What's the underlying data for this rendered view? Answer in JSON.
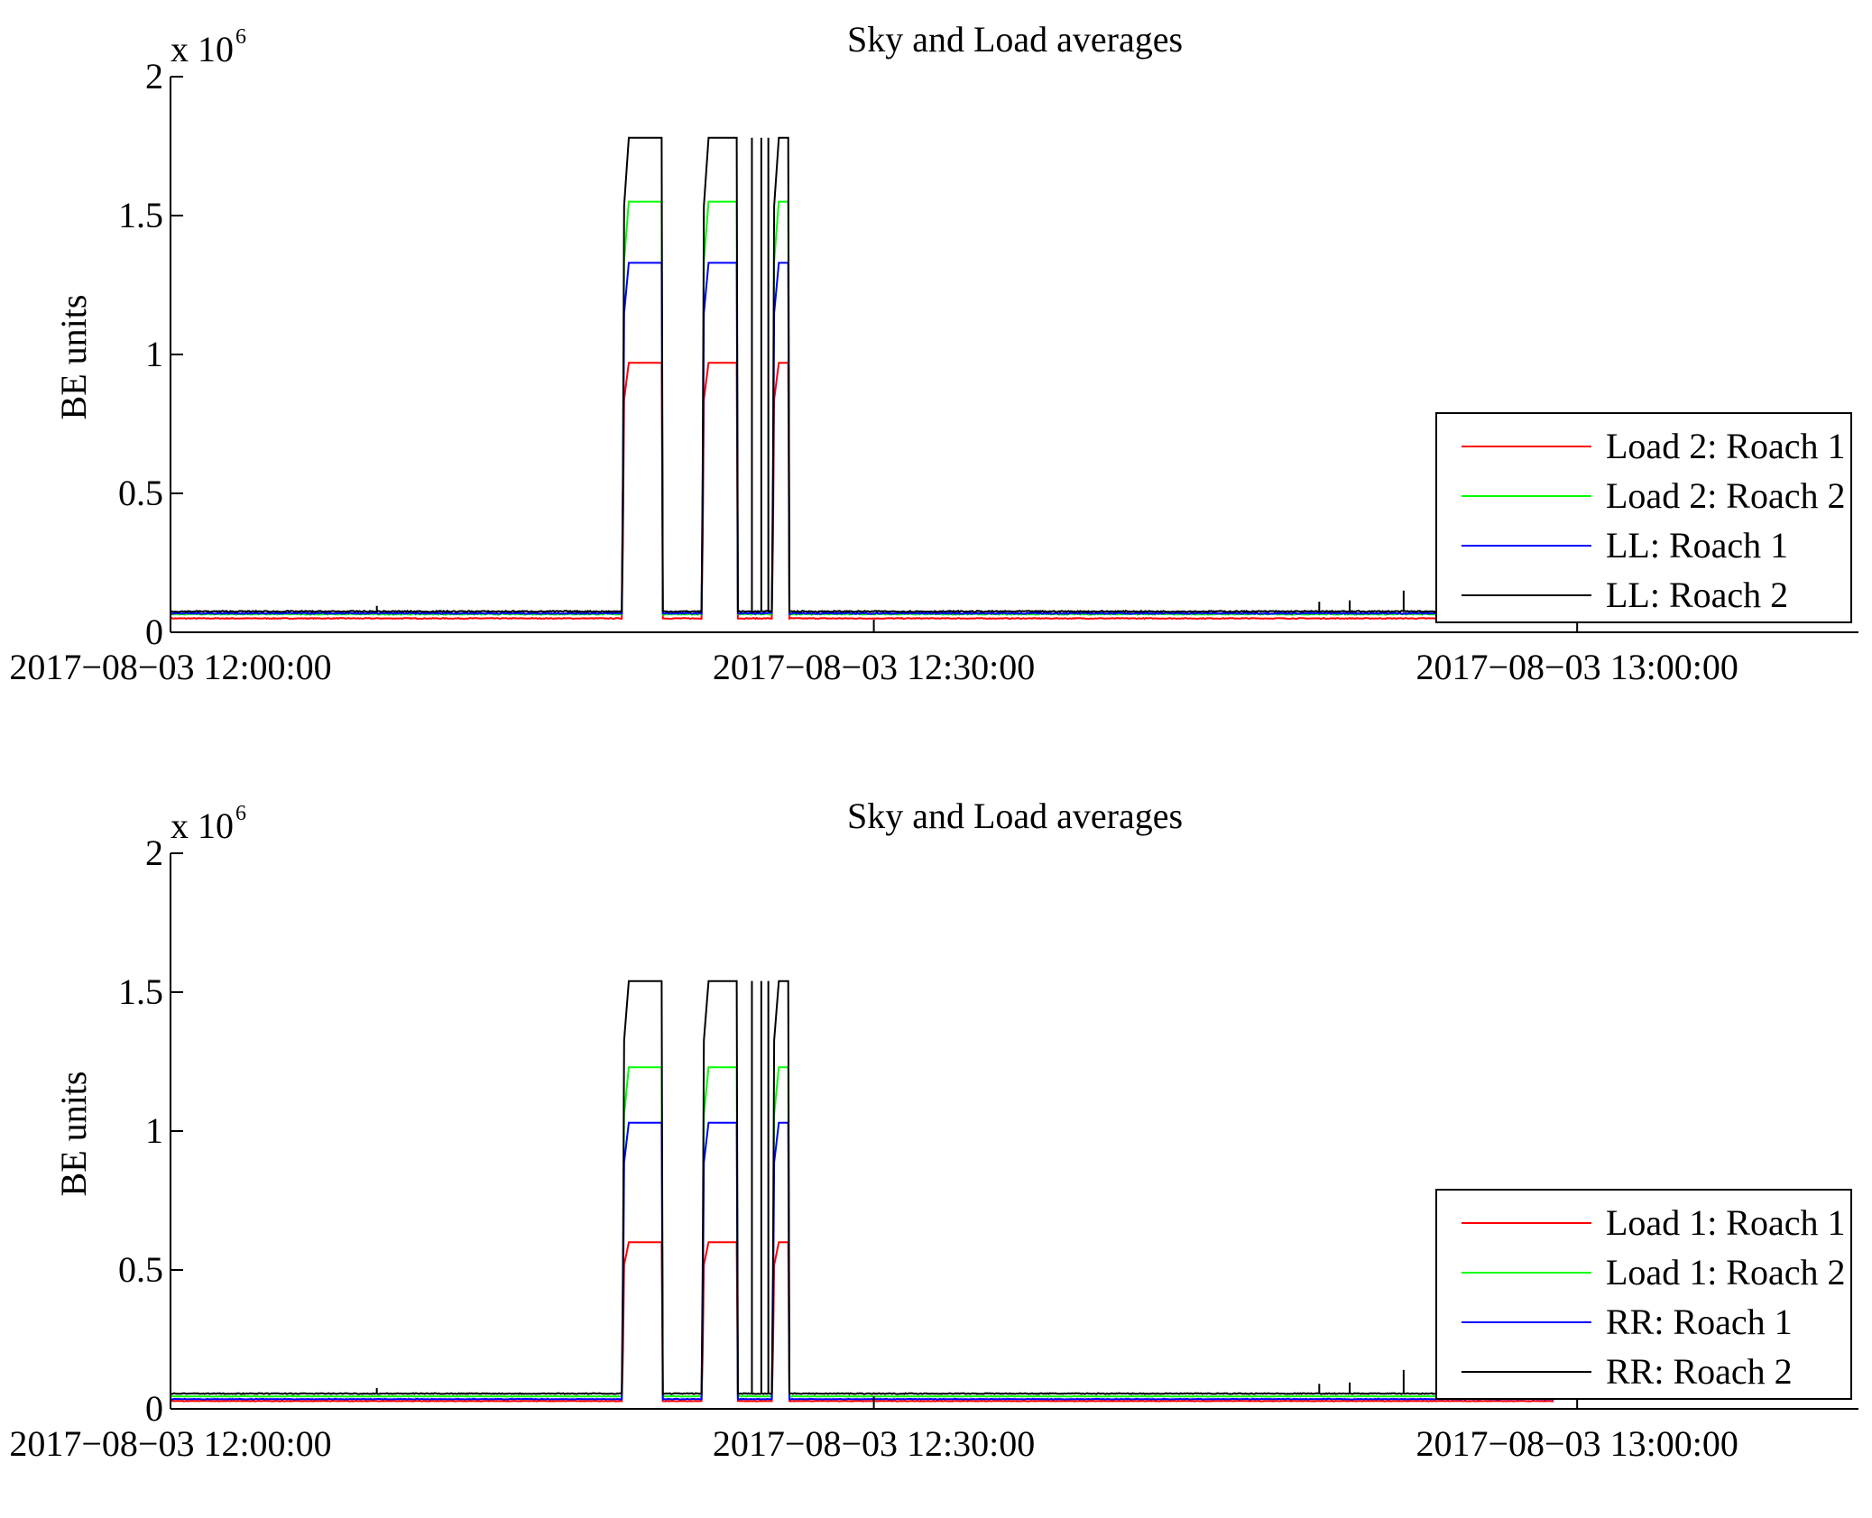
{
  "chart_data": [
    {
      "type": "line",
      "title": "Sky and Load averages",
      "ylabel": "BE units",
      "y_multiplier": "x 10",
      "y_multiplier_exponent": "6",
      "ylim": [
        0,
        2000000
      ],
      "y_ticks": [
        0,
        500000,
        1000000,
        1500000,
        2000000
      ],
      "y_tick_labels": [
        "0",
        "0.5",
        "1",
        "1.5",
        "2"
      ],
      "xlim": [
        "2017-08-03 12:00:00",
        "2017-08-03 13:12:00"
      ],
      "x_ticks": [
        "2017-08-03 12:00:00",
        "2017-08-03 12:30:00",
        "2017-08-03 13:00:00"
      ],
      "x_tick_labels": [
        "2017−08−03 12:00:00",
        "2017−08−03 12:30:00",
        "2017−08−03 13:00:00"
      ],
      "legend_position": "lower-right",
      "observation_windows_minutes": [
        [
          19.3,
          21.0
        ],
        [
          22.7,
          24.2
        ],
        [
          25.7,
          26.4
        ]
      ],
      "series": [
        {
          "name": "Load 2: Roach 1",
          "color": "#ff0000",
          "baseline": 50000,
          "plateau": 970000,
          "spikes": [],
          "x_end_min": 59.0
        },
        {
          "name": "Load 2: Roach 2",
          "color": "#00ff00",
          "baseline": 65000,
          "plateau": 1550000,
          "spikes": [],
          "x_end_min": 59.0
        },
        {
          "name": "LL: Roach 1",
          "color": "#0000ff",
          "baseline": 68000,
          "plateau": 1330000,
          "spikes": [],
          "x_end_min": 59.0
        },
        {
          "name": "LL: Roach 2",
          "color": "#000000",
          "baseline": 75000,
          "plateau": 1780000,
          "spikes": [
            [
              8.8,
              95000
            ],
            [
              49.0,
              110000
            ],
            [
              50.3,
              115000
            ],
            [
              52.6,
              150000
            ]
          ],
          "x_end_min": 59.0
        }
      ]
    },
    {
      "type": "line",
      "title": "Sky and Load averages",
      "ylabel": "BE units",
      "y_multiplier": "x 10",
      "y_multiplier_exponent": "6",
      "ylim": [
        0,
        2000000
      ],
      "y_ticks": [
        0,
        500000,
        1000000,
        1500000,
        2000000
      ],
      "y_tick_labels": [
        "0",
        "0.5",
        "1",
        "1.5",
        "2"
      ],
      "xlim": [
        "2017-08-03 12:00:00",
        "2017-08-03 13:12:00"
      ],
      "x_ticks": [
        "2017-08-03 12:00:00",
        "2017-08-03 12:30:00",
        "2017-08-03 13:00:00"
      ],
      "x_tick_labels": [
        "2017−08−03 12:00:00",
        "2017−08−03 12:30:00",
        "2017−08−03 13:00:00"
      ],
      "legend_position": "lower-right",
      "observation_windows_minutes": [
        [
          19.3,
          21.0
        ],
        [
          22.7,
          24.2
        ],
        [
          25.7,
          26.4
        ]
      ],
      "series": [
        {
          "name": "Load 1: Roach 1",
          "color": "#ff0000",
          "baseline": 28000,
          "plateau": 600000,
          "spikes": [],
          "x_end_min": 59.0
        },
        {
          "name": "Load 1: Roach 2",
          "color": "#00ff00",
          "baseline": 45000,
          "plateau": 1230000,
          "spikes": [],
          "x_end_min": 59.0
        },
        {
          "name": "RR: Roach 1",
          "color": "#0000ff",
          "baseline": 35000,
          "plateau": 1030000,
          "spikes": [],
          "x_end_min": 59.0
        },
        {
          "name": "RR: Roach 2",
          "color": "#000000",
          "baseline": 55000,
          "plateau": 1540000,
          "spikes": [
            [
              8.8,
              75000
            ],
            [
              49.0,
              90000
            ],
            [
              50.3,
              95000
            ],
            [
              52.6,
              140000
            ]
          ],
          "x_end_min": 59.0
        }
      ]
    }
  ]
}
